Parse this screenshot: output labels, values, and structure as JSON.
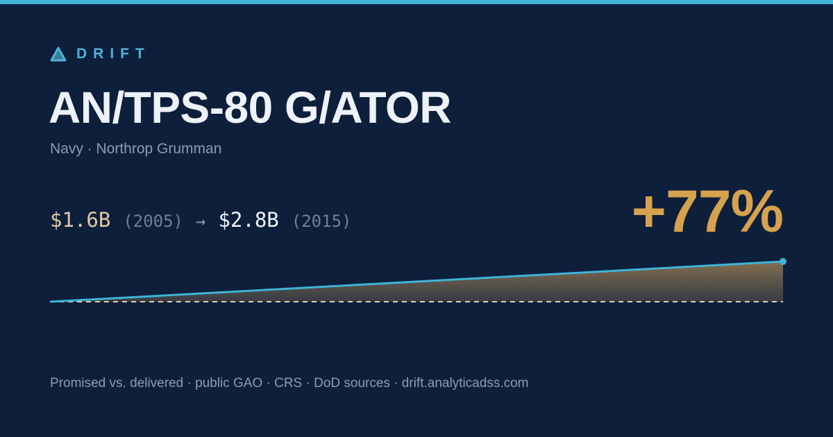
{
  "brand": "DRIFT",
  "chart_data": {
    "type": "area",
    "title": "AN/TPS-80 G/ATOR",
    "subtitle": "Navy · Northrop Grumman",
    "x": [
      2005,
      2015
    ],
    "x_labels": [
      "(2005)",
      "(2015)"
    ],
    "values": [
      1.6,
      2.8
    ],
    "value_labels": [
      "$1.6B",
      "$2.8B"
    ],
    "arrow": "→",
    "change": "+77%",
    "color": "#3fb4d8"
  },
  "footer": "Promised vs. delivered · public GAO · CRS · DoD sources · drift.analyticadss.com"
}
